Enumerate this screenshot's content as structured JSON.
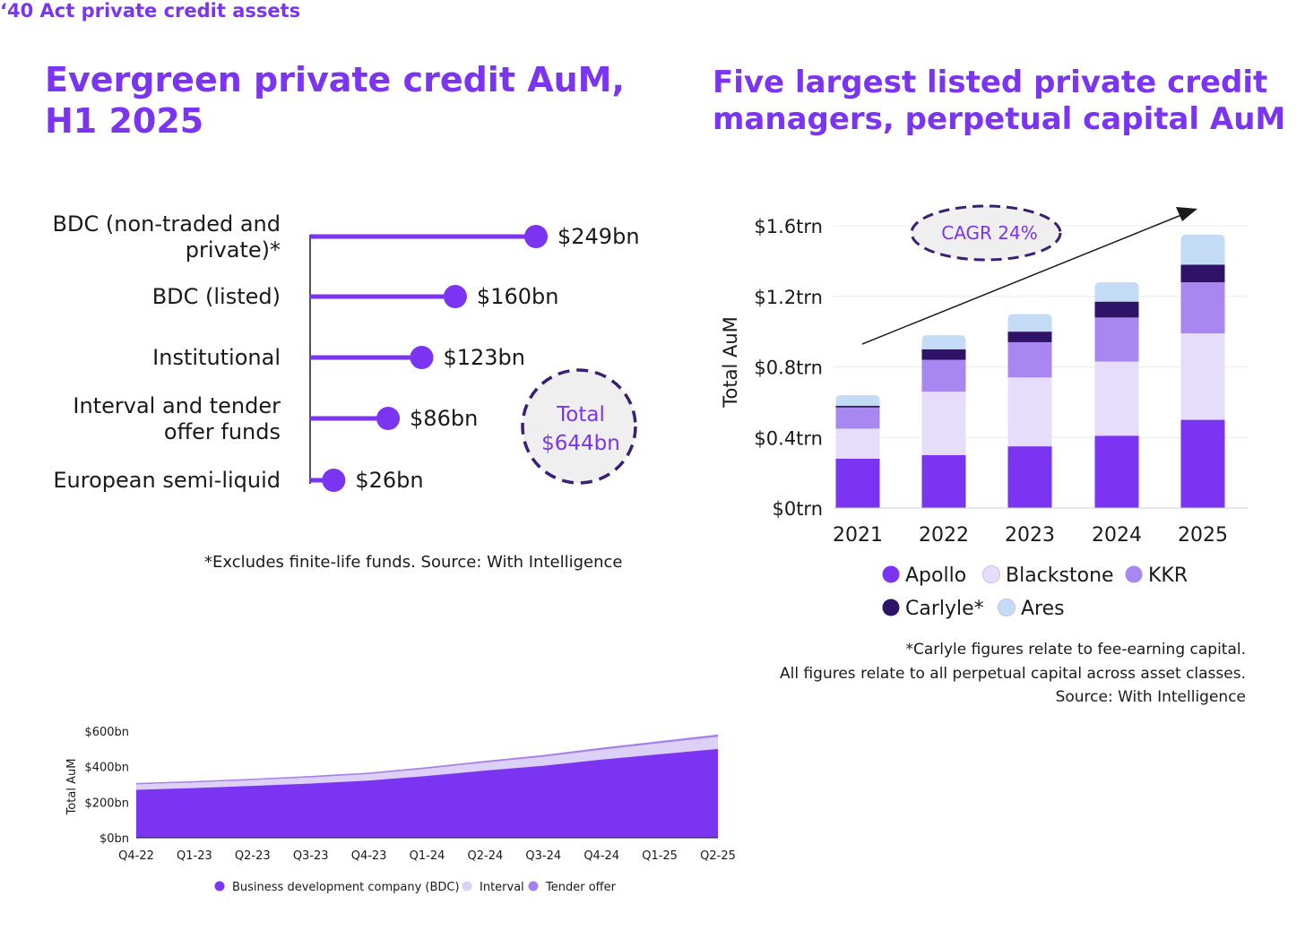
{
  "titles": {
    "left": "Evergreen private credit AuM, H1 2025",
    "right": "Five largest listed private credit managers, perpetual capital AuM",
    "bottom": "‘40 Act private credit assets"
  },
  "notes": {
    "left": "*Excludes finite-life funds. Source: With Intelligence",
    "right": [
      "*Carlyle figures relate to fee-earning capital.",
      "All figures relate to all perpetual capital across asset classes.",
      "Source: With Intelligence"
    ]
  },
  "colors": {
    "accent": "#7b35f2",
    "Apollo": "#7b35f2",
    "Blackstone": "#e6ddfb",
    "KKR": "#a987f0",
    "Carlyle*": "#2f1368",
    "Ares": "#c4dbf6",
    "BDC": "#7b35f2",
    "Interval": "#ddd0f7",
    "Tender offer": "#a780f0",
    "dashed_ring": "#3a1f75",
    "bubble_fill": "#efefef"
  },
  "chart_data": [
    {
      "id": "evergreen",
      "type": "bar",
      "orientation": "horizontal",
      "title": "Evergreen private credit AuM, H1 2025",
      "categories": [
        [
          "BDC (non-traded and",
          "private)*"
        ],
        [
          "BDC (listed)"
        ],
        [
          "Institutional"
        ],
        [
          "Interval and tender",
          "offer funds"
        ],
        [
          "European semi-liquid"
        ]
      ],
      "values": [
        249,
        160,
        123,
        86,
        26
      ],
      "value_labels": [
        "$249bn",
        "$160bn",
        "$123bn",
        "$86bn",
        "$26bn"
      ],
      "total_label": [
        "Total",
        "$644bn"
      ]
    },
    {
      "id": "managers",
      "type": "bar",
      "stacked": true,
      "title": "Five largest listed private credit managers, perpetual capital AuM",
      "ylabel": "Total AuM",
      "ylim": [
        0,
        1.6
      ],
      "yticks": [
        0,
        0.4,
        0.8,
        1.2,
        1.6
      ],
      "ytick_labels": [
        "$0trn",
        "$0.4trn",
        "$0.8trn",
        "$1.2trn",
        "$1.6trn"
      ],
      "categories": [
        "2021",
        "2022",
        "2023",
        "2024",
        "2025"
      ],
      "series": [
        {
          "name": "Apollo",
          "values": [
            0.28,
            0.3,
            0.35,
            0.41,
            0.5
          ]
        },
        {
          "name": "Blackstone",
          "values": [
            0.17,
            0.36,
            0.39,
            0.42,
            0.49
          ]
        },
        {
          "name": "KKR",
          "values": [
            0.12,
            0.18,
            0.2,
            0.25,
            0.29
          ]
        },
        {
          "name": "Carlyle*",
          "values": [
            0.01,
            0.06,
            0.06,
            0.09,
            0.1
          ]
        },
        {
          "name": "Ares",
          "values": [
            0.06,
            0.08,
            0.1,
            0.11,
            0.17
          ]
        }
      ],
      "annotation": "CAGR 24%",
      "grid": true,
      "legend": "bottom"
    },
    {
      "id": "act40",
      "type": "area",
      "stacked": true,
      "title": "‘40 Act private credit assets",
      "ylabel": "Total AuM",
      "ylim": [
        0,
        600
      ],
      "yticks": [
        0,
        200,
        400,
        600
      ],
      "ytick_labels": [
        "$0bn",
        "$200bn",
        "$400bn",
        "$600bn"
      ],
      "x": [
        "Q4-22",
        "Q1-23",
        "Q2-23",
        "Q3-23",
        "Q4-23",
        "Q1-24",
        "Q2-24",
        "Q3-24",
        "Q4-24",
        "Q1-25",
        "Q2-25"
      ],
      "series": [
        {
          "name": "Business development company (BDC)",
          "values": [
            270,
            280,
            292,
            305,
            322,
            348,
            378,
            405,
            440,
            470,
            500
          ]
        },
        {
          "name": "Interval",
          "values": [
            30,
            31,
            32,
            34,
            36,
            40,
            45,
            50,
            55,
            62,
            68
          ]
        },
        {
          "name": "Tender offer",
          "values": [
            8,
            8,
            8,
            9,
            9,
            10,
            10,
            11,
            12,
            12,
            13
          ]
        }
      ],
      "legend": "bottom"
    }
  ]
}
